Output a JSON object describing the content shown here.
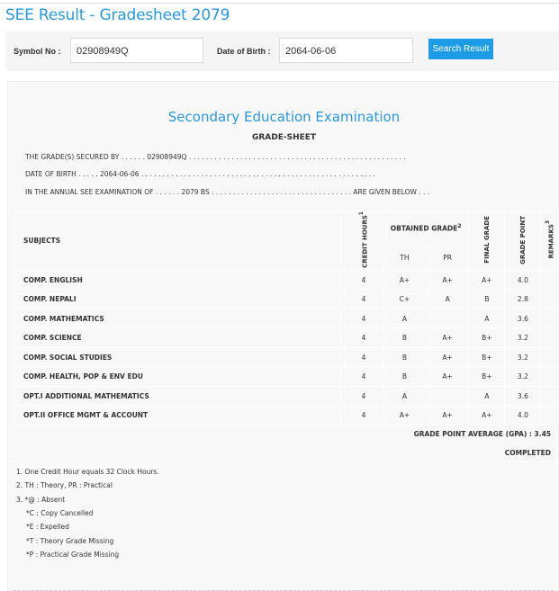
{
  "page": {
    "title": "SEE Result - Gradesheet 2079"
  },
  "search": {
    "symbol_label": "Symbol No :",
    "symbol_value": "02908949Q",
    "dob_label": "Date of Birth :",
    "dob_value": "2064-06-06",
    "button": "Search Result"
  },
  "sheet": {
    "title": "Secondary Education Examination",
    "subtitle": "GRADE-SHEET",
    "line1": "THE GRADE(S) SECURED BY . . . . . . 02908949Q . . . . . . . . . . . . . . . . . . . . . . . . . . . . . . . . . . . . . . . . . . . . . . . . . . .",
    "line2": "DATE OF BIRTH . . . . . 2064-06-06 . . . . . . . . . . . . . . . . . . . . . . . . . . . . . . . . . . . . . . . . . . . . . . . . . . . . . . .",
    "line3": "IN THE ANNUAL SEE EXAMINATION OF . . . . . . 2079 BS . . . . . . . . . . . . . . . . . . . . . . . . . . . . . . . . . ARE GIVEN BELOW . . .",
    "headers": {
      "subjects": "SUBJECTS",
      "credit": "CREDIT HOURS",
      "credit_sup": "1",
      "obtained": "OBTAINED GRADE",
      "obtained_sup": "2",
      "th": "TH",
      "pr": "PR",
      "final": "FINAL GRADE",
      "point": "GRADE POINT",
      "remarks": "REMARKS",
      "remarks_sup": "3"
    },
    "rows": [
      {
        "subject": "COMP. ENGLISH",
        "credit": "4",
        "th": "A+",
        "pr": "A+",
        "final": "A+",
        "point": "4.0",
        "remarks": ""
      },
      {
        "subject": "COMP. NEPALI",
        "credit": "4",
        "th": "C+",
        "pr": "A",
        "final": "B",
        "point": "2.8",
        "remarks": ""
      },
      {
        "subject": "COMP. MATHEMATICS",
        "credit": "4",
        "th": "A",
        "pr": "",
        "final": "A",
        "point": "3.6",
        "remarks": ""
      },
      {
        "subject": "COMP. SCIENCE",
        "credit": "4",
        "th": "B",
        "pr": "A+",
        "final": "B+",
        "point": "3.2",
        "remarks": ""
      },
      {
        "subject": "COMP. SOCIAL STUDIES",
        "credit": "4",
        "th": "B",
        "pr": "A+",
        "final": "B+",
        "point": "3.2",
        "remarks": ""
      },
      {
        "subject": "COMP. HEALTH, POP & ENV EDU",
        "credit": "4",
        "th": "B",
        "pr": "A+",
        "final": "B+",
        "point": "3.2",
        "remarks": ""
      },
      {
        "subject": "OPT.I ADDITIONAL MATHEMATICS",
        "credit": "4",
        "th": "A",
        "pr": "",
        "final": "A",
        "point": "3.6",
        "remarks": ""
      },
      {
        "subject": "OPT.II OFFICE MGMT & ACCOUNT",
        "credit": "4",
        "th": "A+",
        "pr": "A+",
        "final": "A+",
        "point": "4.0",
        "remarks": ""
      }
    ],
    "gpa": "GRADE POINT AVERAGE (GPA) : 3.45",
    "status": "COMPLETED",
    "footnotes": [
      "1. One Credit Hour equals 32 Clock Hours.",
      "2. TH : Theory, PR : Practical",
      "3. *@ : Absent",
      "*C : Copy Cancelled",
      "*E : Expelled",
      "*T : Theory Grade Missing",
      "*P : Practical Grade Missing"
    ]
  }
}
